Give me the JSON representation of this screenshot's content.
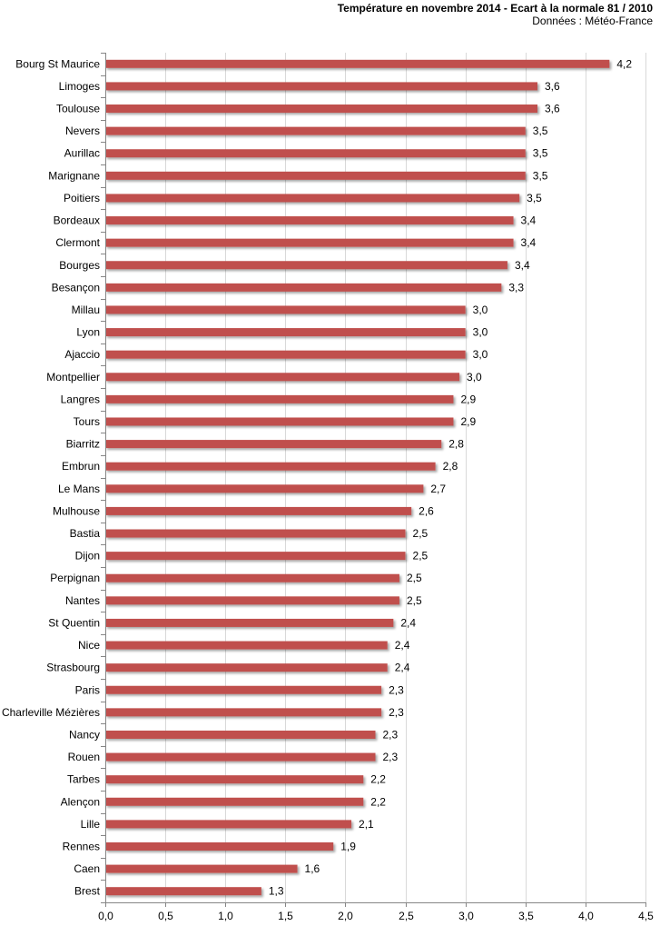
{
  "chart_data": {
    "type": "bar",
    "orientation": "horizontal",
    "title": "Température en novembre 2014 - Ecart à la normale 81 / 2010",
    "subtitle": "Données : Météo-France",
    "categories": [
      "Bourg St Maurice",
      "Limoges",
      "Toulouse",
      "Nevers",
      "Aurillac",
      "Marignane",
      "Poitiers",
      "Bordeaux",
      "Clermont",
      "Bourges",
      "Besançon",
      "Millau",
      "Lyon",
      "Ajaccio",
      "Montpellier",
      "Langres",
      "Tours",
      "Biarritz",
      "Embrun",
      "Le Mans",
      "Mulhouse",
      "Bastia",
      "Dijon",
      "Perpignan",
      "Nantes",
      "St Quentin",
      "Nice",
      "Strasbourg",
      "Paris",
      "Charleville Mézières",
      "Nancy",
      "Rouen",
      "Tarbes",
      "Alençon",
      "Lille",
      "Rennes",
      "Caen",
      "Brest"
    ],
    "values": [
      4.2,
      3.6,
      3.6,
      3.5,
      3.5,
      3.5,
      3.45,
      3.4,
      3.4,
      3.35,
      3.3,
      3.0,
      3.0,
      3.0,
      2.95,
      2.9,
      2.9,
      2.8,
      2.75,
      2.65,
      2.55,
      2.5,
      2.5,
      2.45,
      2.45,
      2.4,
      2.35,
      2.35,
      2.3,
      2.3,
      2.25,
      2.25,
      2.15,
      2.15,
      2.05,
      1.9,
      1.6,
      1.3
    ],
    "value_labels": [
      "4,2",
      "3,6",
      "3,6",
      "3,5",
      "3,5",
      "3,5",
      "3,5",
      "3,4",
      "3,4",
      "3,4",
      "3,3",
      "3,0",
      "3,0",
      "3,0",
      "3,0",
      "2,9",
      "2,9",
      "2,8",
      "2,8",
      "2,7",
      "2,6",
      "2,5",
      "2,5",
      "2,5",
      "2,5",
      "2,4",
      "2,4",
      "2,4",
      "2,3",
      "2,3",
      "2,3",
      "2,3",
      "2,2",
      "2,2",
      "2,1",
      "1,9",
      "1,6",
      "1,3"
    ],
    "x_ticks": [
      "0,0",
      "0,5",
      "1,0",
      "1,5",
      "2,0",
      "2,5",
      "3,0",
      "3,5",
      "4,0",
      "4,5"
    ],
    "xlim": [
      0,
      4.5
    ],
    "grid": true,
    "legend": "none",
    "bar_color": "#C0504D",
    "grid_color": "#D9D9D9",
    "axis_color": "#868686"
  }
}
